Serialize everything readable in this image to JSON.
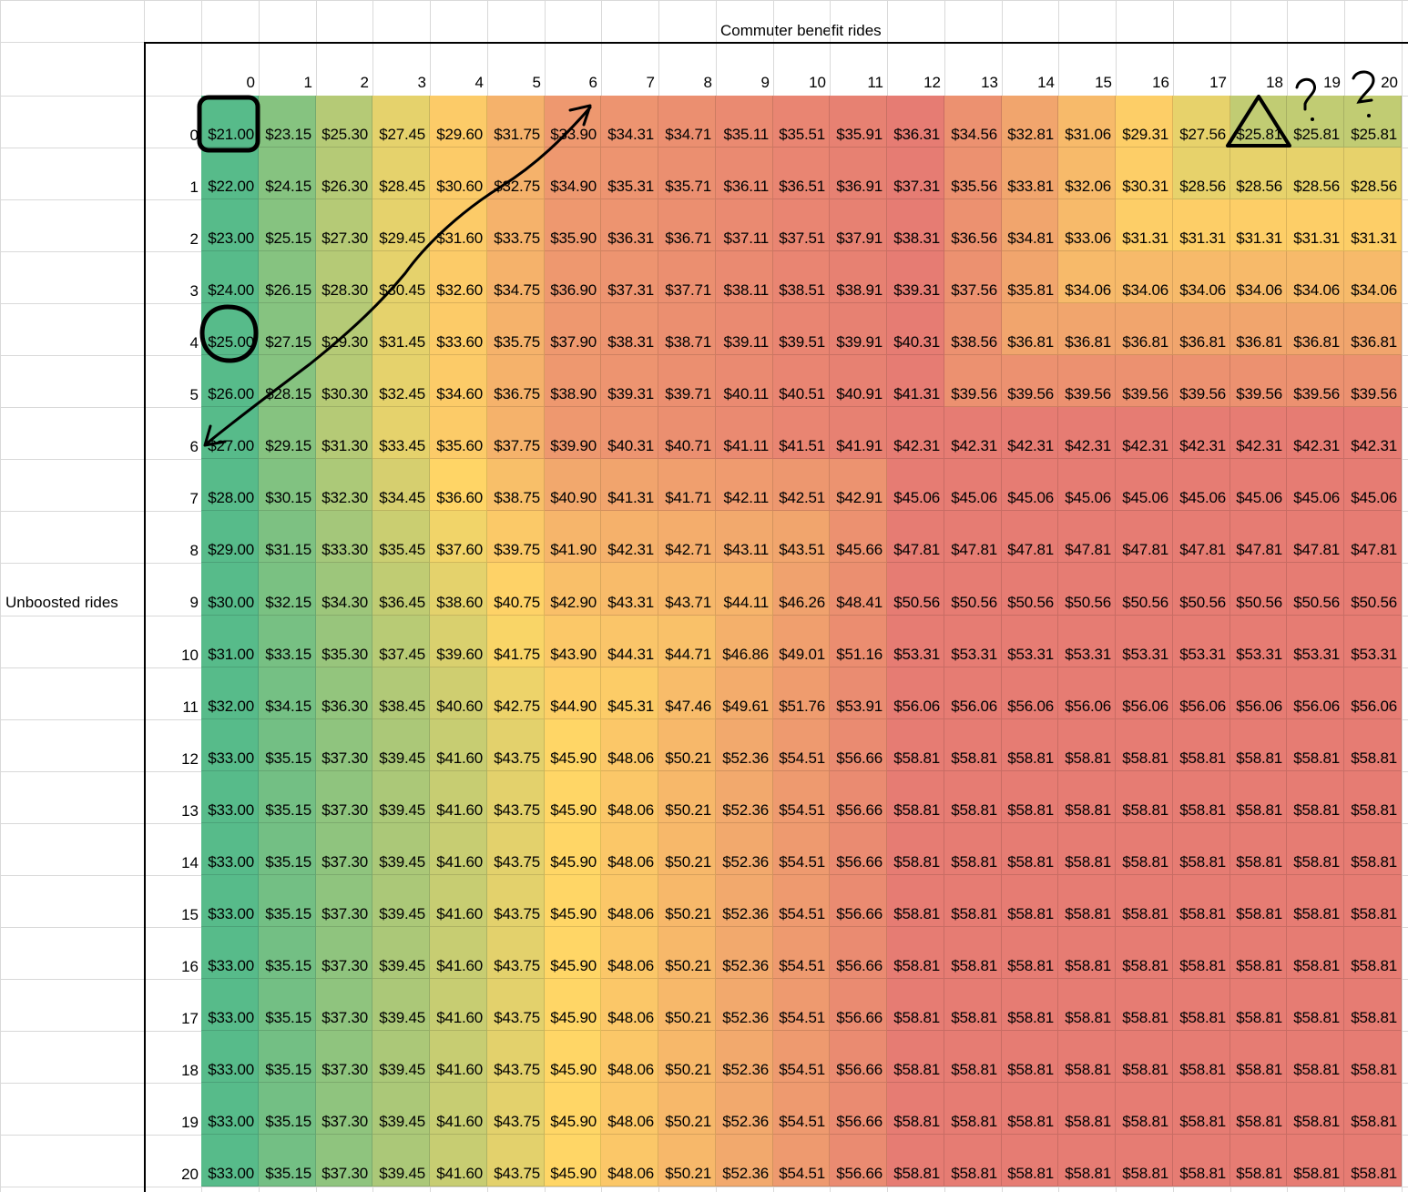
{
  "sheet": {
    "col_axis_title": "Commuter benefit rides",
    "row_axis_title": "Unboosted rides",
    "col_headers": [
      "0",
      "1",
      "2",
      "3",
      "4",
      "5",
      "6",
      "7",
      "8",
      "9",
      "10",
      "11",
      "12",
      "13",
      "14",
      "15",
      "16",
      "17",
      "18",
      "19",
      "20"
    ],
    "row_headers": [
      "0",
      "1",
      "2",
      "3",
      "4",
      "5",
      "6",
      "7",
      "8",
      "9",
      "10",
      "11",
      "12",
      "13",
      "14",
      "15",
      "16",
      "17",
      "18",
      "19",
      "20"
    ],
    "colors": {
      "red": "#e67c73",
      "orange": "#f0a16a",
      "yellow": "#ffd666",
      "lightgreen": "#abc978",
      "green": "#57bb8a",
      "grid": "#d9d9d9"
    },
    "rows": [
      [
        "$21.00",
        "$23.15",
        "$25.30",
        "$27.45",
        "$29.60",
        "$31.75",
        "$33.90",
        "$34.31",
        "$34.71",
        "$35.11",
        "$35.51",
        "$35.91",
        "$36.31",
        "$34.56",
        "$32.81",
        "$31.06",
        "$29.31",
        "$27.56",
        "$25.81",
        "$25.81",
        "$25.81"
      ],
      [
        "$22.00",
        "$24.15",
        "$26.30",
        "$28.45",
        "$30.60",
        "$32.75",
        "$34.90",
        "$35.31",
        "$35.71",
        "$36.11",
        "$36.51",
        "$36.91",
        "$37.31",
        "$35.56",
        "$33.81",
        "$32.06",
        "$30.31",
        "$28.56",
        "$28.56",
        "$28.56",
        "$28.56"
      ],
      [
        "$23.00",
        "$25.15",
        "$27.30",
        "$29.45",
        "$31.60",
        "$33.75",
        "$35.90",
        "$36.31",
        "$36.71",
        "$37.11",
        "$37.51",
        "$37.91",
        "$38.31",
        "$36.56",
        "$34.81",
        "$33.06",
        "$31.31",
        "$31.31",
        "$31.31",
        "$31.31",
        "$31.31"
      ],
      [
        "$24.00",
        "$26.15",
        "$28.30",
        "$30.45",
        "$32.60",
        "$34.75",
        "$36.90",
        "$37.31",
        "$37.71",
        "$38.11",
        "$38.51",
        "$38.91",
        "$39.31",
        "$37.56",
        "$35.81",
        "$34.06",
        "$34.06",
        "$34.06",
        "$34.06",
        "$34.06",
        "$34.06"
      ],
      [
        "$25.00",
        "$27.15",
        "$29.30",
        "$31.45",
        "$33.60",
        "$35.75",
        "$37.90",
        "$38.31",
        "$38.71",
        "$39.11",
        "$39.51",
        "$39.91",
        "$40.31",
        "$38.56",
        "$36.81",
        "$36.81",
        "$36.81",
        "$36.81",
        "$36.81",
        "$36.81",
        "$36.81"
      ],
      [
        "$26.00",
        "$28.15",
        "$30.30",
        "$32.45",
        "$34.60",
        "$36.75",
        "$38.90",
        "$39.31",
        "$39.71",
        "$40.11",
        "$40.51",
        "$40.91",
        "$41.31",
        "$39.56",
        "$39.56",
        "$39.56",
        "$39.56",
        "$39.56",
        "$39.56",
        "$39.56",
        "$39.56"
      ],
      [
        "$27.00",
        "$29.15",
        "$31.30",
        "$33.45",
        "$35.60",
        "$37.75",
        "$39.90",
        "$40.31",
        "$40.71",
        "$41.11",
        "$41.51",
        "$41.91",
        "$42.31",
        "$42.31",
        "$42.31",
        "$42.31",
        "$42.31",
        "$42.31",
        "$42.31",
        "$42.31",
        "$42.31"
      ],
      [
        "$28.00",
        "$30.15",
        "$32.30",
        "$34.45",
        "$36.60",
        "$38.75",
        "$40.90",
        "$41.31",
        "$41.71",
        "$42.11",
        "$42.51",
        "$42.91",
        "$45.06",
        "$45.06",
        "$45.06",
        "$45.06",
        "$45.06",
        "$45.06",
        "$45.06",
        "$45.06",
        "$45.06"
      ],
      [
        "$29.00",
        "$31.15",
        "$33.30",
        "$35.45",
        "$37.60",
        "$39.75",
        "$41.90",
        "$42.31",
        "$42.71",
        "$43.11",
        "$43.51",
        "$45.66",
        "$47.81",
        "$47.81",
        "$47.81",
        "$47.81",
        "$47.81",
        "$47.81",
        "$47.81",
        "$47.81",
        "$47.81"
      ],
      [
        "$30.00",
        "$32.15",
        "$34.30",
        "$36.45",
        "$38.60",
        "$40.75",
        "$42.90",
        "$43.31",
        "$43.71",
        "$44.11",
        "$46.26",
        "$48.41",
        "$50.56",
        "$50.56",
        "$50.56",
        "$50.56",
        "$50.56",
        "$50.56",
        "$50.56",
        "$50.56",
        "$50.56"
      ],
      [
        "$31.00",
        "$33.15",
        "$35.30",
        "$37.45",
        "$39.60",
        "$41.75",
        "$43.90",
        "$44.31",
        "$44.71",
        "$46.86",
        "$49.01",
        "$51.16",
        "$53.31",
        "$53.31",
        "$53.31",
        "$53.31",
        "$53.31",
        "$53.31",
        "$53.31",
        "$53.31",
        "$53.31"
      ],
      [
        "$32.00",
        "$34.15",
        "$36.30",
        "$38.45",
        "$40.60",
        "$42.75",
        "$44.90",
        "$45.31",
        "$47.46",
        "$49.61",
        "$51.76",
        "$53.91",
        "$56.06",
        "$56.06",
        "$56.06",
        "$56.06",
        "$56.06",
        "$56.06",
        "$56.06",
        "$56.06",
        "$56.06"
      ],
      [
        "$33.00",
        "$35.15",
        "$37.30",
        "$39.45",
        "$41.60",
        "$43.75",
        "$45.90",
        "$48.06",
        "$50.21",
        "$52.36",
        "$54.51",
        "$56.66",
        "$58.81",
        "$58.81",
        "$58.81",
        "$58.81",
        "$58.81",
        "$58.81",
        "$58.81",
        "$58.81",
        "$58.81"
      ],
      [
        "$33.00",
        "$35.15",
        "$37.30",
        "$39.45",
        "$41.60",
        "$43.75",
        "$45.90",
        "$48.06",
        "$50.21",
        "$52.36",
        "$54.51",
        "$56.66",
        "$58.81",
        "$58.81",
        "$58.81",
        "$58.81",
        "$58.81",
        "$58.81",
        "$58.81",
        "$58.81",
        "$58.81"
      ],
      [
        "$33.00",
        "$35.15",
        "$37.30",
        "$39.45",
        "$41.60",
        "$43.75",
        "$45.90",
        "$48.06",
        "$50.21",
        "$52.36",
        "$54.51",
        "$56.66",
        "$58.81",
        "$58.81",
        "$58.81",
        "$58.81",
        "$58.81",
        "$58.81",
        "$58.81",
        "$58.81",
        "$58.81"
      ],
      [
        "$33.00",
        "$35.15",
        "$37.30",
        "$39.45",
        "$41.60",
        "$43.75",
        "$45.90",
        "$48.06",
        "$50.21",
        "$52.36",
        "$54.51",
        "$56.66",
        "$58.81",
        "$58.81",
        "$58.81",
        "$58.81",
        "$58.81",
        "$58.81",
        "$58.81",
        "$58.81",
        "$58.81"
      ],
      [
        "$33.00",
        "$35.15",
        "$37.30",
        "$39.45",
        "$41.60",
        "$43.75",
        "$45.90",
        "$48.06",
        "$50.21",
        "$52.36",
        "$54.51",
        "$56.66",
        "$58.81",
        "$58.81",
        "$58.81",
        "$58.81",
        "$58.81",
        "$58.81",
        "$58.81",
        "$58.81",
        "$58.81"
      ],
      [
        "$33.00",
        "$35.15",
        "$37.30",
        "$39.45",
        "$41.60",
        "$43.75",
        "$45.90",
        "$48.06",
        "$50.21",
        "$52.36",
        "$54.51",
        "$56.66",
        "$58.81",
        "$58.81",
        "$58.81",
        "$58.81",
        "$58.81",
        "$58.81",
        "$58.81",
        "$58.81",
        "$58.81"
      ],
      [
        "$33.00",
        "$35.15",
        "$37.30",
        "$39.45",
        "$41.60",
        "$43.75",
        "$45.90",
        "$48.06",
        "$50.21",
        "$52.36",
        "$54.51",
        "$56.66",
        "$58.81",
        "$58.81",
        "$58.81",
        "$58.81",
        "$58.81",
        "$58.81",
        "$58.81",
        "$58.81",
        "$58.81"
      ],
      [
        "$33.00",
        "$35.15",
        "$37.30",
        "$39.45",
        "$41.60",
        "$43.75",
        "$45.90",
        "$48.06",
        "$50.21",
        "$52.36",
        "$54.51",
        "$56.66",
        "$58.81",
        "$58.81",
        "$58.81",
        "$58.81",
        "$58.81",
        "$58.81",
        "$58.81",
        "$58.81",
        "$58.81"
      ],
      [
        "$33.00",
        "$35.15",
        "$37.30",
        "$39.45",
        "$41.60",
        "$43.75",
        "$45.90",
        "$48.06",
        "$50.21",
        "$52.36",
        "$54.51",
        "$56.66",
        "$58.81",
        "$58.81",
        "$58.81",
        "$58.81",
        "$58.81",
        "$58.81",
        "$58.81",
        "$58.81",
        "$58.81"
      ]
    ],
    "annotations": [
      "square-mark",
      "circle-mark",
      "triangle-mark",
      "question-mark",
      "question-mark",
      "diagonal-double-arrow"
    ]
  }
}
